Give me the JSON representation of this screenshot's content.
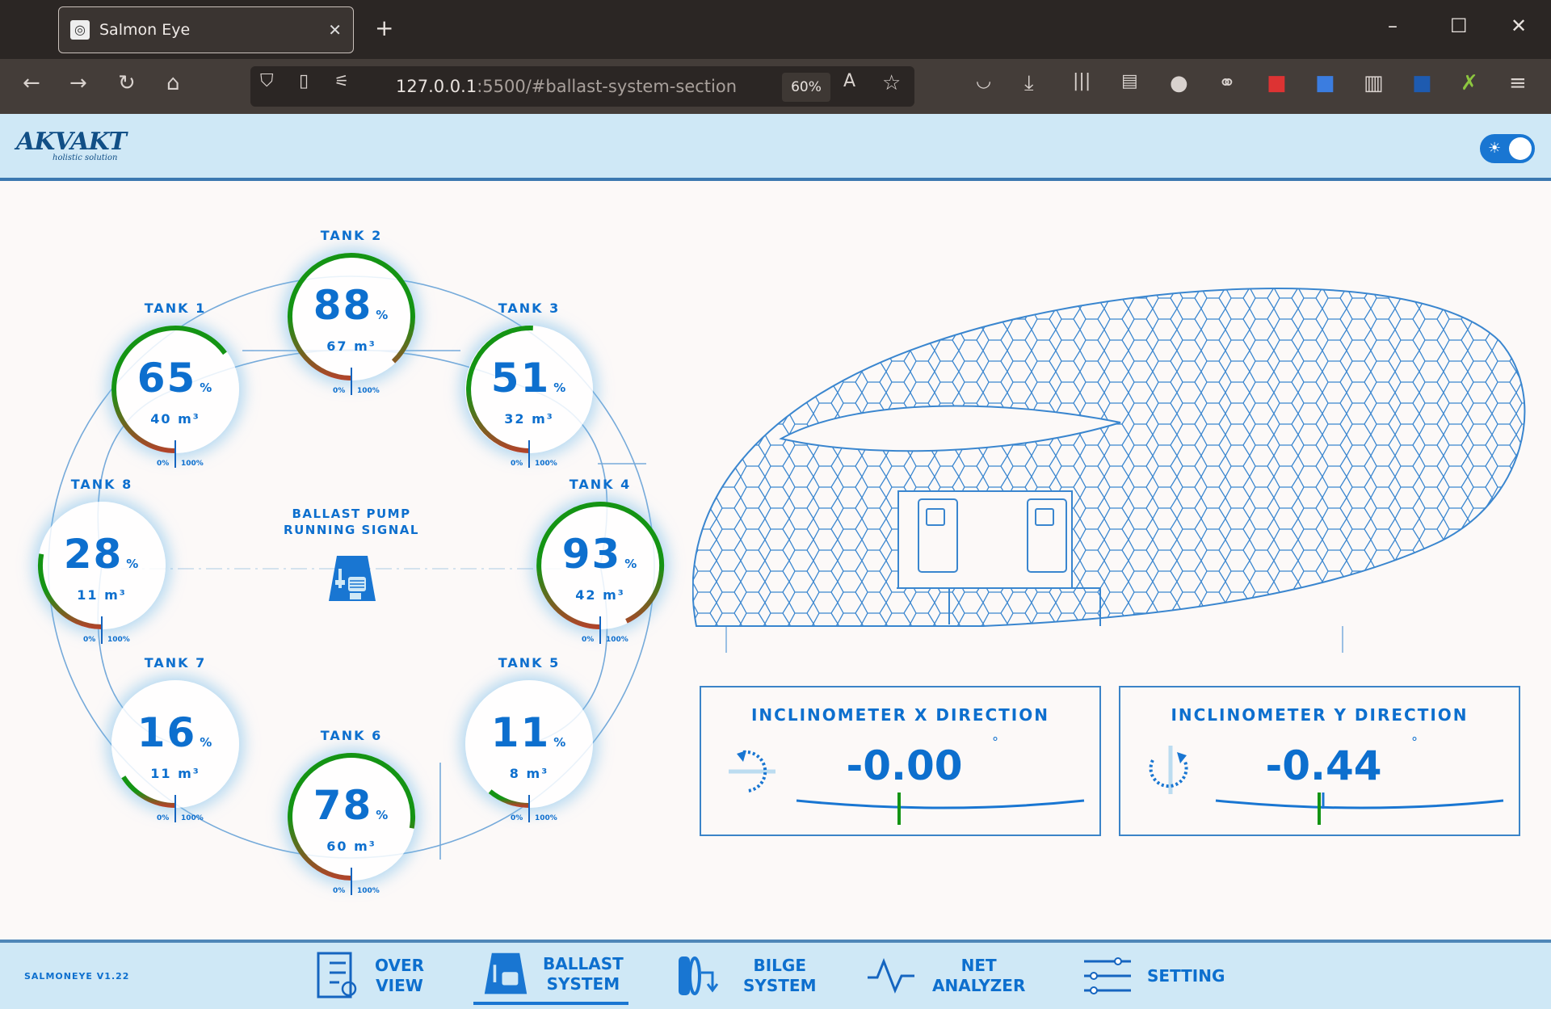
{
  "browser": {
    "tab_title": "Salmon Eye",
    "url_host": "127.0.0.1",
    "url_rest": ":5500/#ballast-system-section",
    "zoom": "60%"
  },
  "header": {
    "logo": "AKVAKT",
    "logo_sub": "holistic solution",
    "theme_toggle": "on"
  },
  "tanks": [
    {
      "label": "TANK 1",
      "percent": 65,
      "volume": "40",
      "unit": "m³"
    },
    {
      "label": "TANK 2",
      "percent": 88,
      "volume": "67",
      "unit": "m³"
    },
    {
      "label": "TANK 3",
      "percent": 51,
      "volume": "32",
      "unit": "m³"
    },
    {
      "label": "TANK 4",
      "percent": 93,
      "volume": "42",
      "unit": "m³"
    },
    {
      "label": "TANK 5",
      "percent": 11,
      "volume": "8",
      "unit": "m³"
    },
    {
      "label": "TANK 6",
      "percent": 78,
      "volume": "60",
      "unit": "m³"
    },
    {
      "label": "TANK 7",
      "percent": 16,
      "volume": "11",
      "unit": "m³"
    },
    {
      "label": "TANK 8",
      "percent": 28,
      "volume": "11",
      "unit": "m³"
    }
  ],
  "gauge": {
    "min_label": "0%",
    "max_label": "100%",
    "pct_symbol": "%",
    "low_color": "#b0442a",
    "high_color": "#149414"
  },
  "pump": {
    "line1": "BALLAST PUMP",
    "line2": "RUNNING SIGNAL"
  },
  "inclinometer": [
    {
      "title": "INCLINOMETER X DIRECTION",
      "value": "-0.00",
      "unit": "°"
    },
    {
      "title": "INCLINOMETER Y DIRECTION",
      "value": "-0.44",
      "unit": "°"
    }
  ],
  "footer": {
    "version": "SALMONEYE V1.22",
    "nav": [
      {
        "l1": "OVER",
        "l2": "VIEW"
      },
      {
        "l1": "BALLAST",
        "l2": "SYSTEM",
        "active": true
      },
      {
        "l1": "BILGE",
        "l2": "SYSTEM"
      },
      {
        "l1": "NET",
        "l2": "ANALYZER"
      },
      {
        "l1": "SETTING",
        "l2": ""
      }
    ]
  },
  "colors": {
    "accent": "#0d6fce",
    "header_bg": "#cfe8f6"
  }
}
